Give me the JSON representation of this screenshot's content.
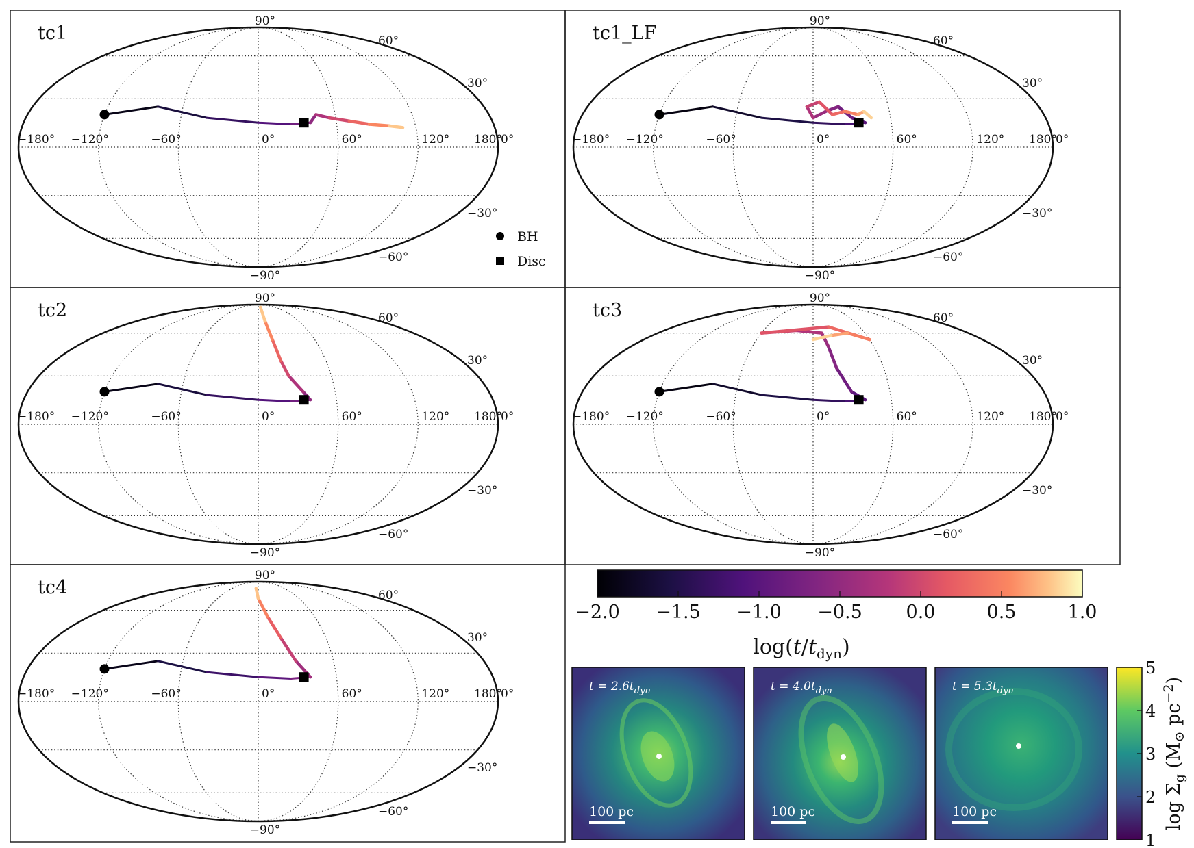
{
  "chart_data": {
    "type": "scatter",
    "projection": "mollweide",
    "panels": [
      {
        "title": "tc1",
        "bh": {
          "lon": -120,
          "lat": 20
        },
        "disc": {
          "lon": 35,
          "lat": 15
        },
        "track": [
          [
            -120,
            20
          ],
          [
            -80,
            25
          ],
          [
            -40,
            18
          ],
          [
            0,
            15
          ],
          [
            25,
            14
          ],
          [
            40,
            15
          ],
          [
            45,
            20
          ],
          [
            55,
            18
          ],
          [
            70,
            16
          ],
          [
            85,
            14
          ],
          [
            100,
            13
          ],
          [
            110,
            12
          ]
        ]
      },
      {
        "title": "tc1_LF",
        "bh": {
          "lon": -120,
          "lat": 20
        },
        "disc": {
          "lon": 35,
          "lat": 15
        },
        "track": [
          [
            -120,
            20
          ],
          [
            -80,
            25
          ],
          [
            -40,
            18
          ],
          [
            0,
            15
          ],
          [
            25,
            14
          ],
          [
            40,
            15
          ],
          [
            30,
            18
          ],
          [
            20,
            25
          ],
          [
            10,
            22
          ],
          [
            0,
            18
          ],
          [
            -5,
            25
          ],
          [
            5,
            28
          ],
          [
            15,
            20
          ],
          [
            25,
            22
          ],
          [
            35,
            20
          ],
          [
            40,
            22
          ],
          [
            45,
            18
          ]
        ]
      },
      {
        "title": "tc2",
        "bh": {
          "lon": -120,
          "lat": 20
        },
        "disc": {
          "lon": 35,
          "lat": 15
        },
        "track": [
          [
            -120,
            20
          ],
          [
            -80,
            25
          ],
          [
            -40,
            18
          ],
          [
            0,
            15
          ],
          [
            25,
            14
          ],
          [
            40,
            15
          ],
          [
            35,
            20
          ],
          [
            25,
            30
          ],
          [
            20,
            40
          ],
          [
            15,
            55
          ],
          [
            10,
            70
          ],
          [
            8,
            85
          ]
        ]
      },
      {
        "title": "tc3",
        "bh": {
          "lon": -120,
          "lat": 20
        },
        "disc": {
          "lon": 35,
          "lat": 15
        },
        "track": [
          [
            -120,
            20
          ],
          [
            -80,
            25
          ],
          [
            -40,
            18
          ],
          [
            0,
            15
          ],
          [
            25,
            14
          ],
          [
            40,
            15
          ],
          [
            30,
            20
          ],
          [
            20,
            35
          ],
          [
            15,
            50
          ],
          [
            10,
            60
          ],
          [
            -20,
            62
          ],
          [
            -60,
            60
          ],
          [
            20,
            65
          ],
          [
            60,
            55
          ],
          [
            40,
            60
          ],
          [
            20,
            58
          ],
          [
            0,
            55
          ]
        ]
      },
      {
        "title": "tc4",
        "bh": {
          "lon": -120,
          "lat": 20
        },
        "disc": {
          "lon": 35,
          "lat": 15
        },
        "track": [
          [
            -120,
            20
          ],
          [
            -80,
            25
          ],
          [
            -40,
            18
          ],
          [
            0,
            15
          ],
          [
            25,
            14
          ],
          [
            40,
            15
          ],
          [
            30,
            25
          ],
          [
            20,
            40
          ],
          [
            10,
            55
          ],
          [
            0,
            70
          ],
          [
            -5,
            80
          ]
        ]
      }
    ],
    "lon_ticks": [
      "−180°",
      "−120°",
      "−60°",
      "0°",
      "60°",
      "120°",
      "180°"
    ],
    "lat_ticks": [
      "90°",
      "60°",
      "30°",
      "0°",
      "−30°",
      "−60°",
      "−90°"
    ],
    "legend": [
      {
        "label": "BH",
        "marker": "circle"
      },
      {
        "label": "Disc",
        "marker": "square"
      }
    ],
    "colorbar": {
      "label": "log(t/t_dyn)",
      "ticks": [
        "−2.0",
        "−1.5",
        "−1.0",
        "−0.5",
        "0.0",
        "0.5",
        "1.0"
      ],
      "range": [
        -2.0,
        1.0
      ],
      "colormap": "magma"
    },
    "snapshots": [
      {
        "time_label": "t = 2.6t",
        "time_sub": "dyn",
        "scale_label": "100 pc"
      },
      {
        "time_label": "t = 4.0t",
        "time_sub": "dyn",
        "scale_label": "100 pc"
      },
      {
        "time_label": "t = 5.3t",
        "time_sub": "dyn",
        "scale_label": "100 pc"
      }
    ],
    "density_colorbar": {
      "label": "log Σ_g (M_⊙ pc^−2)",
      "ticks": [
        "1",
        "2",
        "3",
        "4",
        "5"
      ],
      "range": [
        1,
        5
      ],
      "colormap": "viridis"
    }
  }
}
